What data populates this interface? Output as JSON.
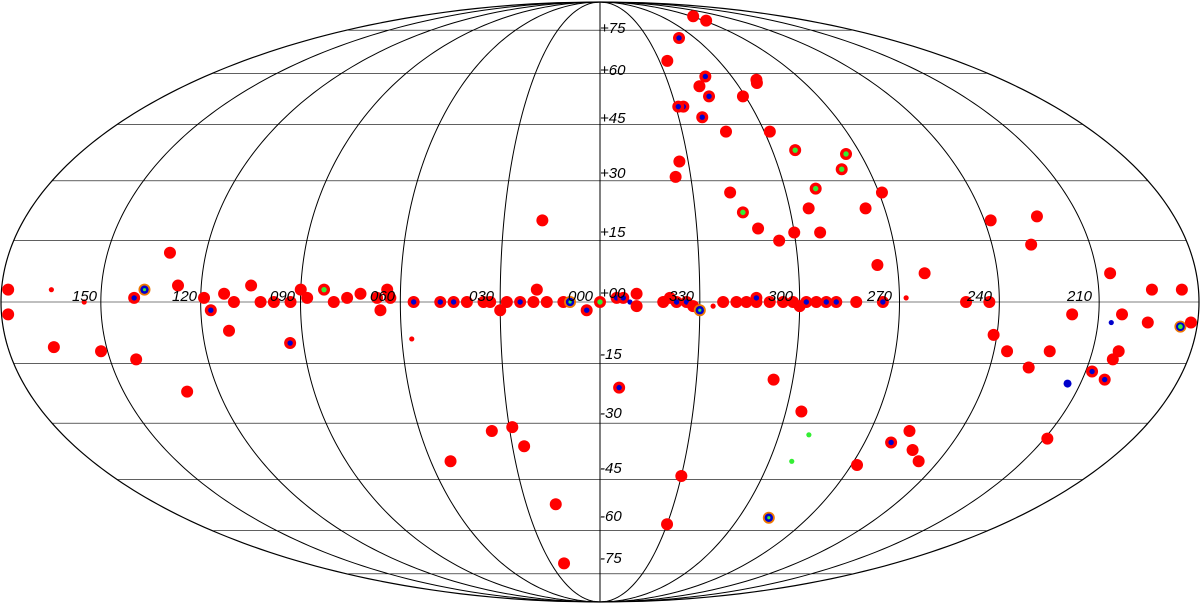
{
  "projection": "mollweide",
  "longitude_labels": [
    "150",
    "120",
    "090",
    "060",
    "030",
    "000",
    "330",
    "300",
    "270",
    "240",
    "210"
  ],
  "latitude_labels": [
    "+75",
    "+60",
    "+45",
    "+30",
    "+15",
    "+00",
    "-15",
    "-30",
    "-45",
    "-60",
    "-75"
  ],
  "colors": {
    "background": "#ffffff",
    "graticule": "#000000",
    "marker_red": "#ff0000",
    "marker_blue": "#0000cc",
    "marker_green": "#33ee33",
    "marker_orange": "#ee7700"
  },
  "marker_styles": {
    "red": "solid red disc",
    "blue": "solid blue dot",
    "green": "solid green dot",
    "red_blue": "red disc with blue center",
    "red_green": "red disc with green center",
    "orange_blue": "orange ring with blue center",
    "blue_green": "blue ring with green center"
  },
  "sources": [
    {
      "l": -92,
      "b": 79,
      "style": "red",
      "size": "l"
    },
    {
      "l": -92,
      "b": 81,
      "style": "red",
      "size": "l"
    },
    {
      "l": -69,
      "b": 57,
      "style": "red",
      "size": "l"
    },
    {
      "l": -59,
      "b": 53,
      "style": "red",
      "size": "l"
    },
    {
      "l": -50,
      "b": 72,
      "style": "red_blue",
      "size": "l"
    },
    {
      "l": -48,
      "b": 59,
      "style": "red_blue",
      "size": "l"
    },
    {
      "l": -45,
      "b": 53,
      "style": "red_blue",
      "size": "l"
    },
    {
      "l": -43,
      "b": 56,
      "style": "red",
      "size": "l"
    },
    {
      "l": -46,
      "b": 43,
      "style": "red",
      "size": "l"
    },
    {
      "l": -39,
      "b": 47,
      "style": "red_blue",
      "size": "l"
    },
    {
      "l": -34,
      "b": 64,
      "style": "red",
      "size": "l"
    },
    {
      "l": -33,
      "b": 50,
      "style": "red_blue",
      "size": "l"
    },
    {
      "l": -68,
      "b": 38,
      "style": "red_green",
      "size": "l"
    },
    {
      "l": -81,
      "b": 33,
      "style": "red_green",
      "size": "l"
    },
    {
      "l": -70,
      "b": 58,
      "style": "red",
      "size": "l"
    },
    {
      "l": -85,
      "b": 37,
      "style": "red_green",
      "size": "l"
    },
    {
      "l": -84,
      "b": 23,
      "style": "red",
      "size": "l"
    },
    {
      "l": -91,
      "b": 27,
      "style": "red",
      "size": "l"
    },
    {
      "l": -62,
      "b": 43,
      "style": "red",
      "size": "l"
    },
    {
      "l": -45,
      "b": 22,
      "style": "red_green",
      "size": "l"
    },
    {
      "l": -70,
      "b": 28,
      "style": "red_green",
      "size": "l"
    },
    {
      "l": -66,
      "b": 23,
      "style": "red",
      "size": "l"
    },
    {
      "l": -68,
      "b": 17,
      "style": "red",
      "size": "l"
    },
    {
      "l": -60,
      "b": 17,
      "style": "red",
      "size": "l"
    },
    {
      "l": -55,
      "b": 15,
      "style": "red",
      "size": "l"
    },
    {
      "l": -49,
      "b": 18,
      "style": "red",
      "size": "l"
    },
    {
      "l": -42,
      "b": 27,
      "style": "red",
      "size": "l"
    },
    {
      "l": -25,
      "b": 31,
      "style": "red",
      "size": "l"
    },
    {
      "l": -31,
      "b": 50,
      "style": "red_blue",
      "size": "l"
    },
    {
      "l": -27,
      "b": 35,
      "style": "red",
      "size": "l"
    },
    {
      "l": 18,
      "b": 20,
      "style": "red",
      "size": "l"
    },
    {
      "l": 29,
      "b": -31,
      "style": "red",
      "size": "l"
    },
    {
      "l": 26,
      "b": -36,
      "style": "red",
      "size": "l"
    },
    {
      "l": 36,
      "b": -32,
      "style": "red",
      "size": "l"
    },
    {
      "l": 18,
      "b": -52,
      "style": "red",
      "size": "l"
    },
    {
      "l": 22,
      "b": -71,
      "style": "red",
      "size": "l"
    },
    {
      "l": -6,
      "b": -21,
      "style": "red_blue",
      "size": "l"
    },
    {
      "l": -30,
      "b": -44,
      "style": "red",
      "size": "l"
    },
    {
      "l": -30,
      "b": -58,
      "style": "red",
      "size": "l"
    },
    {
      "l": -54,
      "b": -19,
      "style": "red",
      "size": "l"
    },
    {
      "l": -65,
      "b": -27,
      "style": "red",
      "size": "l"
    },
    {
      "l": -70,
      "b": -33,
      "style": "green",
      "size": "s"
    },
    {
      "l": -68,
      "b": -40,
      "style": "green",
      "size": "s"
    },
    {
      "l": -73,
      "b": -56,
      "style": "orange_blue",
      "size": "l"
    },
    {
      "l": -108,
      "b": -37,
      "style": "red",
      "size": "l"
    },
    {
      "l": -99,
      "b": -35,
      "style": "red_blue",
      "size": "l"
    },
    {
      "l": -103,
      "b": -32,
      "style": "red",
      "size": "l"
    },
    {
      "l": -113,
      "b": -40,
      "style": "red",
      "size": "l"
    },
    {
      "l": -92,
      "b": -41,
      "style": "red",
      "size": "l"
    },
    {
      "l": 130,
      "b": -22,
      "style": "red",
      "size": "l"
    },
    {
      "l": 53,
      "b": -40,
      "style": "red",
      "size": "l"
    },
    {
      "l": 57,
      "b": -9,
      "style": "red",
      "size": "s"
    },
    {
      "l": 112,
      "b": -7,
      "style": "red",
      "size": "l"
    },
    {
      "l": 152,
      "b": -12,
      "style": "red",
      "size": "l"
    },
    {
      "l": 166,
      "b": -11,
      "style": "red",
      "size": "l"
    },
    {
      "l": 142,
      "b": -14,
      "style": "red",
      "size": "l"
    },
    {
      "l": 94,
      "b": -10,
      "style": "red_blue",
      "size": "l"
    },
    {
      "l": -119,
      "b": -8,
      "style": "red",
      "size": "l"
    },
    {
      "l": -124,
      "b": -12,
      "style": "red",
      "size": "l"
    },
    {
      "l": -137,
      "b": -12,
      "style": "red",
      "size": "l"
    },
    {
      "l": -132,
      "b": -16,
      "style": "red",
      "size": "l"
    },
    {
      "l": -157,
      "b": -14,
      "style": "red",
      "size": "l"
    },
    {
      "l": -158,
      "b": -12,
      "style": "red",
      "size": "l"
    },
    {
      "l": -157,
      "b": -19,
      "style": "red_blue",
      "size": "l"
    },
    {
      "l": -152,
      "b": -17,
      "style": "red_blue",
      "size": "l"
    },
    {
      "l": -151,
      "b": -34,
      "style": "red",
      "size": "l"
    },
    {
      "l": -154,
      "b": -5,
      "style": "blue",
      "size": "s"
    },
    {
      "l": -146,
      "b": -20,
      "style": "blue",
      "size": "l"
    },
    {
      "l": -175,
      "b": -6,
      "style": "blue_green",
      "size": "l"
    },
    {
      "l": -165,
      "b": -5,
      "style": "red",
      "size": "l"
    },
    {
      "l": -166,
      "b": 3,
      "style": "red",
      "size": "l"
    },
    {
      "l": -175,
      "b": 3,
      "style": "red",
      "size": "l"
    },
    {
      "l": -178,
      "b": -5,
      "style": "red",
      "size": "l"
    },
    {
      "l": -154,
      "b": 7,
      "style": "red",
      "size": "l"
    },
    {
      "l": -157,
      "b": -3,
      "style": "red",
      "size": "l"
    },
    {
      "l": -142,
      "b": -3,
      "style": "red",
      "size": "l"
    },
    {
      "l": -137,
      "b": 21,
      "style": "red",
      "size": "l"
    },
    {
      "l": -132,
      "b": 14,
      "style": "red",
      "size": "l"
    },
    {
      "l": -122,
      "b": 20,
      "style": "red",
      "size": "l"
    },
    {
      "l": -98,
      "b": 7,
      "style": "red",
      "size": "l"
    },
    {
      "l": -84,
      "b": 9,
      "style": "red",
      "size": "l"
    },
    {
      "l": -92,
      "b": 1,
      "style": "red",
      "size": "s"
    },
    {
      "l": -110,
      "b": 0,
      "style": "red",
      "size": "l"
    },
    {
      "l": -117,
      "b": 0,
      "style": "red",
      "size": "l"
    },
    {
      "l": 178,
      "b": 3,
      "style": "red",
      "size": "l"
    },
    {
      "l": 178,
      "b": -3,
      "style": "red",
      "size": "l"
    },
    {
      "l": 165,
      "b": 3,
      "style": "red",
      "size": "s"
    },
    {
      "l": 155,
      "b": 0,
      "style": "red",
      "size": "s"
    },
    {
      "l": 140,
      "b": 1,
      "style": "red_blue",
      "size": "l"
    },
    {
      "l": 137,
      "b": 3,
      "style": "orange_blue",
      "size": "l"
    },
    {
      "l": 131,
      "b": 12,
      "style": "red",
      "size": "l"
    },
    {
      "l": 127,
      "b": 4,
      "style": "red",
      "size": "l"
    },
    {
      "l": 119,
      "b": 1,
      "style": "red",
      "size": "l"
    },
    {
      "l": 117,
      "b": -2,
      "style": "red_blue",
      "size": "l"
    },
    {
      "l": 113,
      "b": 2,
      "style": "red",
      "size": "l"
    },
    {
      "l": 110,
      "b": 0,
      "style": "red",
      "size": "l"
    },
    {
      "l": 105,
      "b": 4,
      "style": "red",
      "size": "l"
    },
    {
      "l": 102,
      "b": 0,
      "style": "red",
      "size": "l"
    },
    {
      "l": 98,
      "b": 0,
      "style": "red",
      "size": "l"
    },
    {
      "l": 93,
      "b": 0,
      "style": "red",
      "size": "l"
    },
    {
      "l": 83,
      "b": 3,
      "style": "red_green",
      "size": "l"
    },
    {
      "l": 90,
      "b": 3,
      "style": "red",
      "size": "l"
    },
    {
      "l": 88,
      "b": 1,
      "style": "red",
      "size": "l"
    },
    {
      "l": 80,
      "b": 0,
      "style": "red",
      "size": "l"
    },
    {
      "l": 76,
      "b": 1,
      "style": "red",
      "size": "l"
    },
    {
      "l": 72,
      "b": 2,
      "style": "red",
      "size": "l"
    },
    {
      "l": 67,
      "b": 1,
      "style": "red",
      "size": "l"
    },
    {
      "l": 64,
      "b": 3,
      "style": "red",
      "size": "l"
    },
    {
      "l": 63,
      "b": 1,
      "style": "red",
      "size": "l"
    },
    {
      "l": 66,
      "b": -2,
      "style": "red",
      "size": "l"
    },
    {
      "l": 56,
      "b": 0,
      "style": "red_blue",
      "size": "l"
    },
    {
      "l": 48,
      "b": 0,
      "style": "red_blue",
      "size": "l"
    },
    {
      "l": 44,
      "b": 0,
      "style": "red_blue",
      "size": "l"
    },
    {
      "l": 40,
      "b": 0,
      "style": "red",
      "size": "l"
    },
    {
      "l": 33,
      "b": 0,
      "style": "red",
      "size": "l"
    },
    {
      "l": 35,
      "b": 0,
      "style": "red",
      "size": "l"
    },
    {
      "l": 30,
      "b": -2,
      "style": "red",
      "size": "l"
    },
    {
      "l": 28,
      "b": 0,
      "style": "red",
      "size": "l"
    },
    {
      "l": 24,
      "b": 0,
      "style": "red_blue",
      "size": "l"
    },
    {
      "l": 20,
      "b": 0,
      "style": "red",
      "size": "l"
    },
    {
      "l": 19,
      "b": 3,
      "style": "red",
      "size": "l"
    },
    {
      "l": 16,
      "b": 0,
      "style": "red",
      "size": "l"
    },
    {
      "l": 11,
      "b": 0,
      "style": "red",
      "size": "l"
    },
    {
      "l": 9,
      "b": 0,
      "style": "orange_blue",
      "size": "l"
    },
    {
      "l": 4,
      "b": -2,
      "style": "red_blue",
      "size": "l"
    },
    {
      "l": 0,
      "b": 0,
      "style": "red_green",
      "size": "l"
    },
    {
      "l": -5,
      "b": 1,
      "style": "red_blue",
      "size": "l"
    },
    {
      "l": -7,
      "b": 1,
      "style": "red_blue",
      "size": "l"
    },
    {
      "l": -9,
      "b": 0,
      "style": "blue",
      "size": "s"
    },
    {
      "l": -11,
      "b": 2,
      "style": "red",
      "size": "l"
    },
    {
      "l": -11,
      "b": -1,
      "style": "red",
      "size": "l"
    },
    {
      "l": -19,
      "b": 0,
      "style": "red",
      "size": "l"
    },
    {
      "l": -21,
      "b": 1,
      "style": "red",
      "size": "l"
    },
    {
      "l": -23,
      "b": 0,
      "style": "red_blue",
      "size": "l"
    },
    {
      "l": -26,
      "b": 0,
      "style": "red_blue",
      "size": "l"
    },
    {
      "l": -28,
      "b": -1,
      "style": "red",
      "size": "l"
    },
    {
      "l": -30,
      "b": -2,
      "style": "orange_blue",
      "size": "l"
    },
    {
      "l": -34,
      "b": -1,
      "style": "red",
      "size": "s"
    },
    {
      "l": -37,
      "b": 0,
      "style": "red",
      "size": "l"
    },
    {
      "l": -41,
      "b": 0,
      "style": "red",
      "size": "l"
    },
    {
      "l": -44,
      "b": 0,
      "style": "red",
      "size": "l"
    },
    {
      "l": -47,
      "b": 0,
      "style": "red",
      "size": "l"
    },
    {
      "l": -47,
      "b": 1,
      "style": "red_blue",
      "size": "l"
    },
    {
      "l": -51,
      "b": 0,
      "style": "red",
      "size": "l"
    },
    {
      "l": -55,
      "b": 0,
      "style": "red",
      "size": "l"
    },
    {
      "l": -58,
      "b": 0,
      "style": "red",
      "size": "l"
    },
    {
      "l": -60,
      "b": -1,
      "style": "red",
      "size": "l"
    },
    {
      "l": -62,
      "b": 0,
      "style": "red_blue",
      "size": "l"
    },
    {
      "l": -65,
      "b": 0,
      "style": "red",
      "size": "l"
    },
    {
      "l": -68,
      "b": 0,
      "style": "red_blue",
      "size": "l"
    },
    {
      "l": -71,
      "b": 0,
      "style": "red_blue",
      "size": "l"
    },
    {
      "l": -77,
      "b": 0,
      "style": "red",
      "size": "l"
    },
    {
      "l": -85,
      "b": 0,
      "style": "red_blue",
      "size": "l"
    }
  ]
}
